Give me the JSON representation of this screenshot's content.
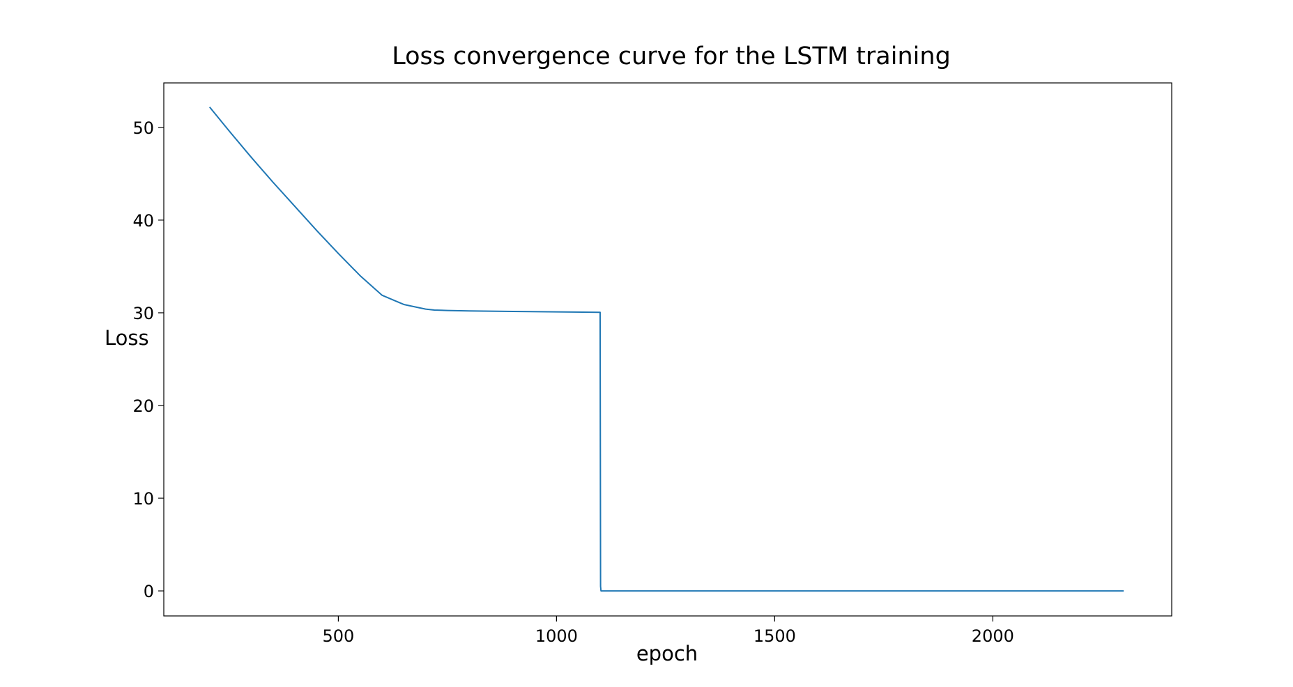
{
  "chart_data": {
    "type": "line",
    "title": "Loss convergence curve for the LSTM training",
    "xlabel": "epoch",
    "ylabel": "Loss",
    "xlim": [
      100,
      2410
    ],
    "ylim": [
      -2.7,
      54.8
    ],
    "xticks": [
      500,
      1000,
      1500,
      2000
    ],
    "xtick_labels": [
      "500",
      "1000",
      "1500",
      "2000"
    ],
    "yticks": [
      0,
      10,
      20,
      30,
      40,
      50
    ],
    "ytick_labels": [
      "0",
      "10",
      "20",
      "30",
      "40",
      "50"
    ],
    "grid": false,
    "legend": "none",
    "series": [
      {
        "color": "#1f77b4",
        "x": [
          205,
          250,
          300,
          350,
          400,
          450,
          500,
          550,
          600,
          630,
          650,
          680,
          700,
          720,
          750,
          800,
          900,
          1000,
          1100,
          1101,
          1102,
          1200,
          1400,
          1600,
          1800,
          2000,
          2200,
          2300
        ],
        "y": [
          52.2,
          49.6,
          46.8,
          44.1,
          41.5,
          38.9,
          36.4,
          34.0,
          31.9,
          31.3,
          30.9,
          30.6,
          30.4,
          30.3,
          30.25,
          30.2,
          30.15,
          30.1,
          30.05,
          0.5,
          0.0,
          0.0,
          0.0,
          0.0,
          0.0,
          0.0,
          0.0,
          0.0
        ]
      }
    ]
  }
}
